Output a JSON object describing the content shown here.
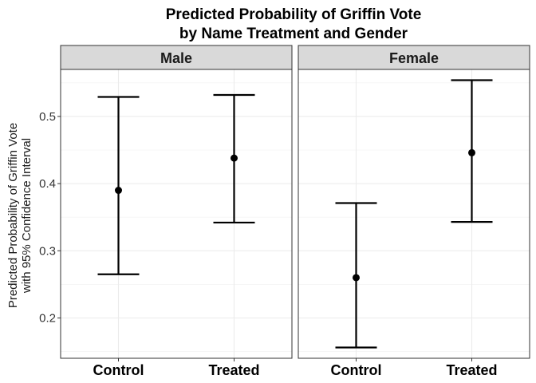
{
  "chart_data": {
    "type": "errorbar",
    "title_line1": "Predicted Probability of Griffin Vote",
    "title_line2": "by Name Treatment and Gender",
    "ylabel_line1": "Predicted Probability of Griffin Vote",
    "ylabel_line2": "with 95% Confidence Interval",
    "xlabel": "",
    "categories": [
      "Control",
      "Treated"
    ],
    "ylim": [
      0.14,
      0.57
    ],
    "yticks": [
      0.2,
      0.3,
      0.4,
      0.5
    ],
    "ytick_labels": [
      "0.2",
      "0.3",
      "0.4",
      "0.5"
    ],
    "grid": true,
    "panels": [
      {
        "name": "Male",
        "points": [
          {
            "x": "Control",
            "y": 0.39,
            "lower": 0.265,
            "upper": 0.529
          },
          {
            "x": "Treated",
            "y": 0.438,
            "lower": 0.342,
            "upper": 0.532
          }
        ]
      },
      {
        "name": "Female",
        "points": [
          {
            "x": "Control",
            "y": 0.26,
            "lower": 0.156,
            "upper": 0.371
          },
          {
            "x": "Treated",
            "y": 0.446,
            "lower": 0.343,
            "upper": 0.554
          }
        ]
      }
    ]
  }
}
